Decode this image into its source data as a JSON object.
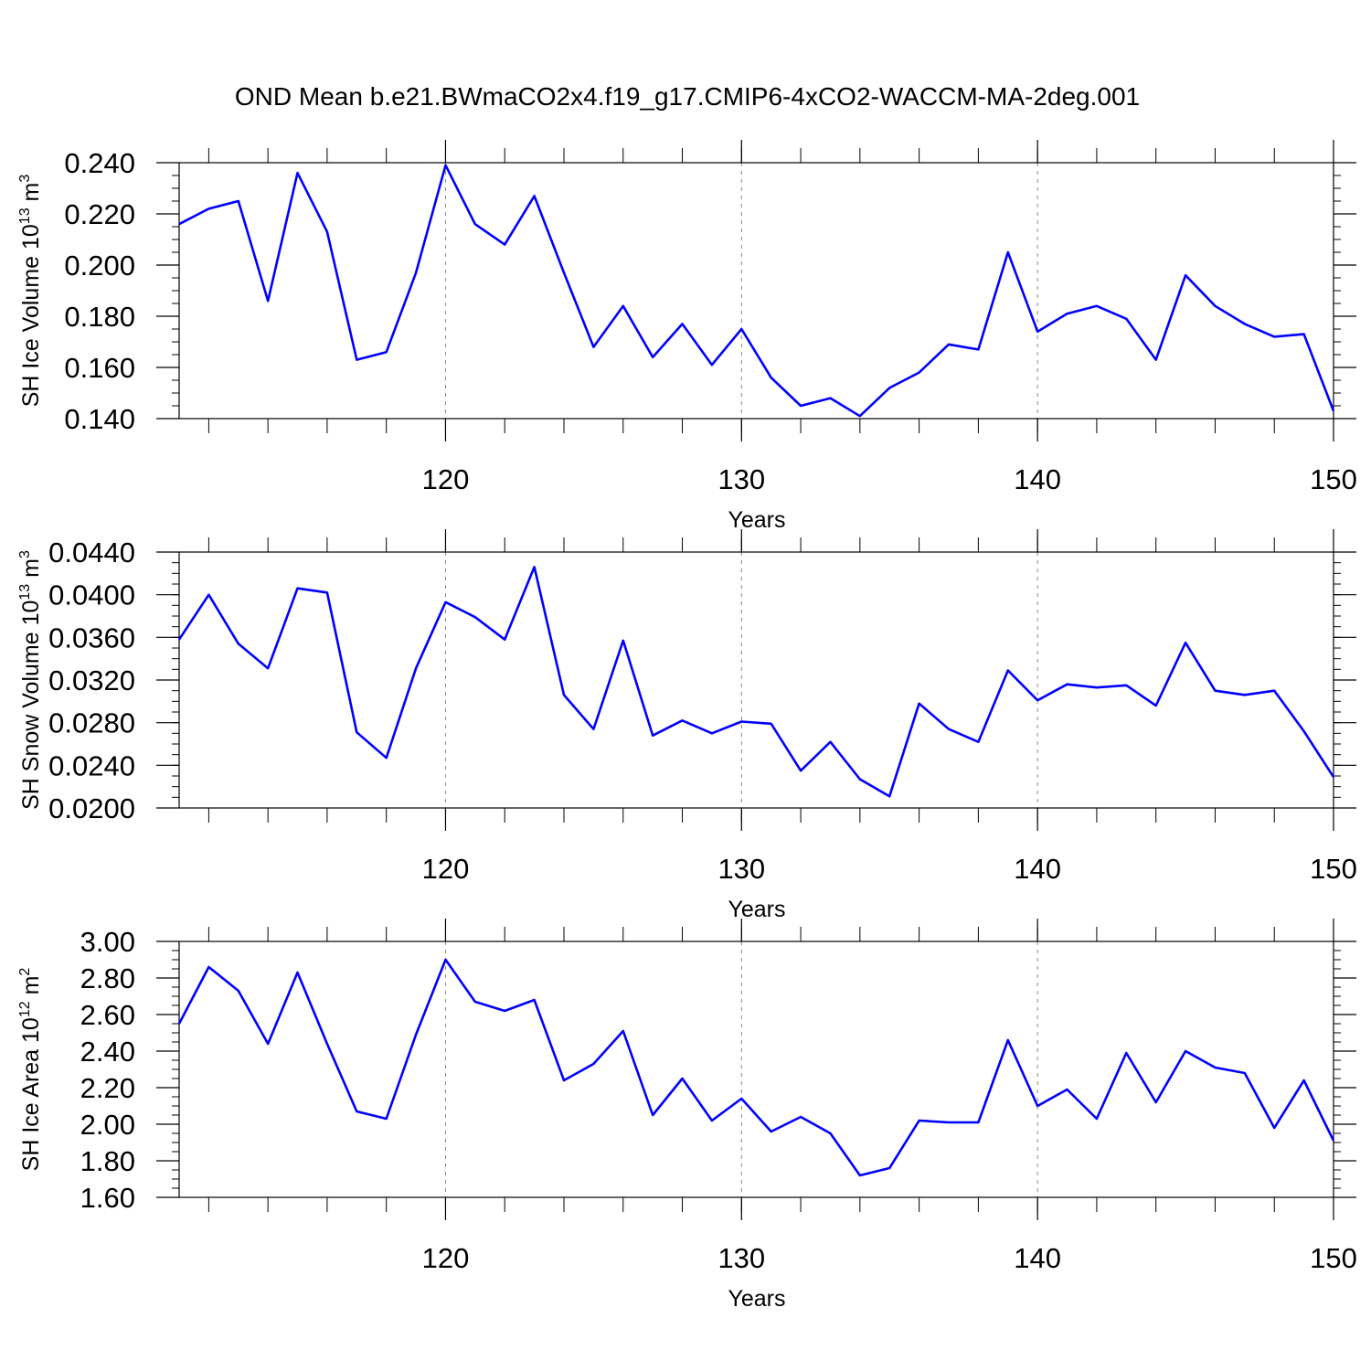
{
  "title": "OND Mean b.e21.BWmaCO2x4.f19_g17.CMIP6-4xCO2-WACCM-MA-2deg.001",
  "colors": {
    "line": "#0000ff",
    "axis": "#000000",
    "grid": "#888888"
  },
  "chart_data": [
    {
      "type": "line",
      "xlabel": "Years",
      "ylabel": {
        "main": "SH Ice Volume 10",
        "exp": "13",
        "unit": " m",
        "unit_exp": "3"
      },
      "xlim": [
        111,
        150
      ],
      "ylim": [
        0.14,
        0.24
      ],
      "xticks": [
        120,
        130,
        140,
        150
      ],
      "xtick_labels": [
        "120",
        "130",
        "140",
        "150"
      ],
      "yticks": [
        0.14,
        0.16,
        0.18,
        0.2,
        0.22,
        0.24
      ],
      "ytick_labels": [
        "0.140",
        "0.160",
        "0.180",
        "0.200",
        "0.220",
        "0.240"
      ],
      "grid": "dashed vertical at major x ticks",
      "x": [
        111,
        112,
        113,
        114,
        115,
        116,
        117,
        118,
        119,
        120,
        121,
        122,
        123,
        124,
        125,
        126,
        127,
        128,
        129,
        130,
        131,
        132,
        133,
        134,
        135,
        136,
        137,
        138,
        139,
        140,
        141,
        142,
        143,
        144,
        145,
        146,
        147,
        148,
        149,
        150
      ],
      "series": [
        {
          "values": [
            0.216,
            0.222,
            0.225,
            0.186,
            0.236,
            0.213,
            0.163,
            0.166,
            0.197,
            0.239,
            0.216,
            0.208,
            0.227,
            0.197,
            0.168,
            0.184,
            0.164,
            0.177,
            0.161,
            0.175,
            0.156,
            0.145,
            0.148,
            0.141,
            0.152,
            0.158,
            0.169,
            0.167,
            0.205,
            0.174,
            0.181,
            0.184,
            0.179,
            0.163,
            0.196,
            0.184,
            0.177,
            0.172,
            0.173,
            0.143
          ]
        }
      ]
    },
    {
      "type": "line",
      "xlabel": "Years",
      "ylabel": {
        "main": "SH Snow Volume 10",
        "exp": "13",
        "unit": " m",
        "unit_exp": "3"
      },
      "xlim": [
        111,
        150
      ],
      "ylim": [
        0.02,
        0.044
      ],
      "xticks": [
        120,
        130,
        140,
        150
      ],
      "xtick_labels": [
        "120",
        "130",
        "140",
        "150"
      ],
      "yticks": [
        0.02,
        0.024,
        0.028,
        0.032,
        0.036,
        0.04,
        0.044
      ],
      "ytick_labels": [
        "0.0200",
        "0.0240",
        "0.0280",
        "0.0320",
        "0.0360",
        "0.0400",
        "0.0440"
      ],
      "grid": "dashed vertical at major x ticks",
      "x": [
        111,
        112,
        113,
        114,
        115,
        116,
        117,
        118,
        119,
        120,
        121,
        122,
        123,
        124,
        125,
        126,
        127,
        128,
        129,
        130,
        131,
        132,
        133,
        134,
        135,
        136,
        137,
        138,
        139,
        140,
        141,
        142,
        143,
        144,
        145,
        146,
        147,
        148,
        149,
        150
      ],
      "series": [
        {
          "values": [
            0.0358,
            0.04,
            0.0354,
            0.0331,
            0.0406,
            0.0402,
            0.0271,
            0.0247,
            0.0331,
            0.0393,
            0.0379,
            0.0358,
            0.0426,
            0.0306,
            0.0274,
            0.0357,
            0.0268,
            0.0282,
            0.027,
            0.0281,
            0.0279,
            0.0235,
            0.0262,
            0.0227,
            0.0211,
            0.0298,
            0.0274,
            0.0262,
            0.0329,
            0.0301,
            0.0316,
            0.0313,
            0.0315,
            0.0296,
            0.0355,
            0.031,
            0.0306,
            0.031,
            0.0272,
            0.0229
          ]
        }
      ]
    },
    {
      "type": "line",
      "xlabel": "Years",
      "ylabel": {
        "main": "SH Ice Area 10",
        "exp": "12",
        "unit": " m",
        "unit_exp": "2"
      },
      "xlim": [
        111,
        150
      ],
      "ylim": [
        1.6,
        3.0
      ],
      "xticks": [
        120,
        130,
        140,
        150
      ],
      "xtick_labels": [
        "120",
        "130",
        "140",
        "150"
      ],
      "yticks": [
        1.6,
        1.8,
        2.0,
        2.2,
        2.4,
        2.6,
        2.8,
        3.0
      ],
      "ytick_labels": [
        "1.60",
        "1.80",
        "2.00",
        "2.20",
        "2.40",
        "2.60",
        "2.80",
        "3.00"
      ],
      "grid": "dashed vertical at major x ticks",
      "x": [
        111,
        112,
        113,
        114,
        115,
        116,
        117,
        118,
        119,
        120,
        121,
        122,
        123,
        124,
        125,
        126,
        127,
        128,
        129,
        130,
        131,
        132,
        133,
        134,
        135,
        136,
        137,
        138,
        139,
        140,
        141,
        142,
        143,
        144,
        145,
        146,
        147,
        148,
        149,
        150
      ],
      "series": [
        {
          "values": [
            2.55,
            2.86,
            2.73,
            2.44,
            2.83,
            2.44,
            2.07,
            2.03,
            2.49,
            2.9,
            2.67,
            2.62,
            2.68,
            2.24,
            2.33,
            2.51,
            2.05,
            2.25,
            2.02,
            2.14,
            1.96,
            2.04,
            1.95,
            1.72,
            1.76,
            2.02,
            2.01,
            2.01,
            2.46,
            2.1,
            2.19,
            2.03,
            2.39,
            2.12,
            2.4,
            2.31,
            2.28,
            1.98,
            2.24,
            1.91
          ]
        }
      ]
    }
  ]
}
